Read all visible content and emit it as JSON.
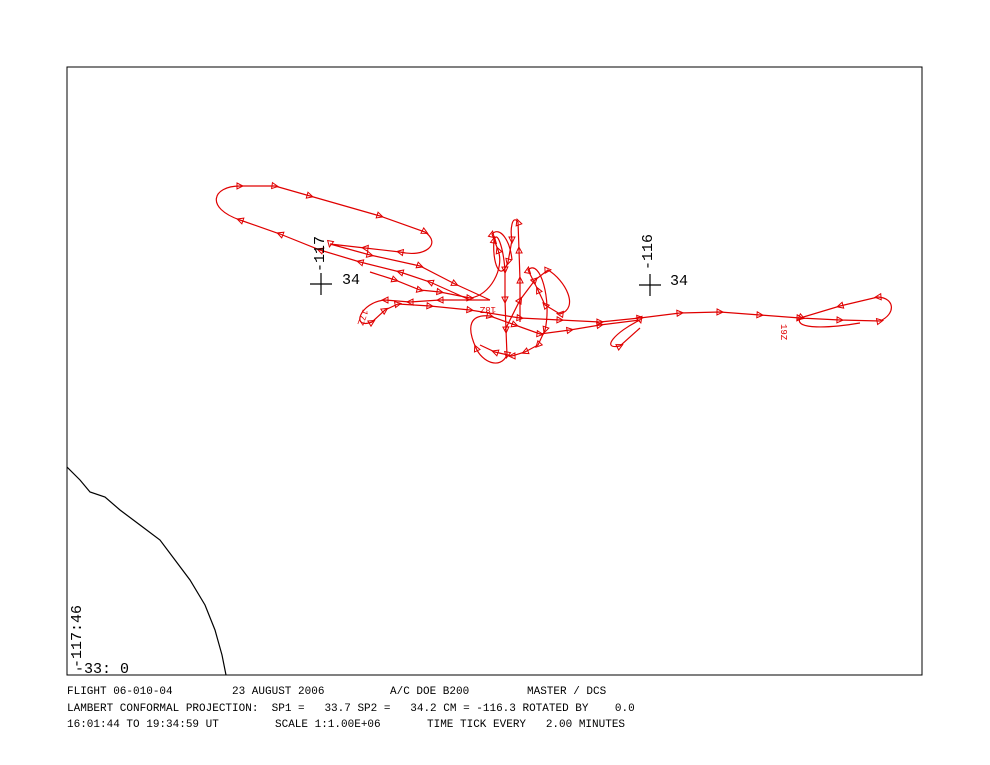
{
  "map": {
    "grid_labels": [
      {
        "lon": "-117",
        "lat": "34"
      },
      {
        "lon": "-116",
        "lat": "34"
      }
    ],
    "time_labels": [
      "17Z",
      "18Z",
      "19Z"
    ],
    "corner": {
      "lon": "-117:46",
      "lat": "-33: 0"
    }
  },
  "footer": {
    "line1": [
      "FLIGHT 06-010-04",
      "23 AUGUST 2006",
      "A/C DOE B200",
      "MASTER / DCS"
    ],
    "line2": "LAMBERT CONFORMAL PROJECTION:  SP1 =   33.7 SP2 =   34.2 CM = -116.3 ROTATED BY    0.0",
    "line3": [
      "16:01:44 TO 19:34:59 UT",
      "SCALE 1:1.00E+06",
      "TIME TICK EVERY   2.00 MINUTES"
    ]
  }
}
